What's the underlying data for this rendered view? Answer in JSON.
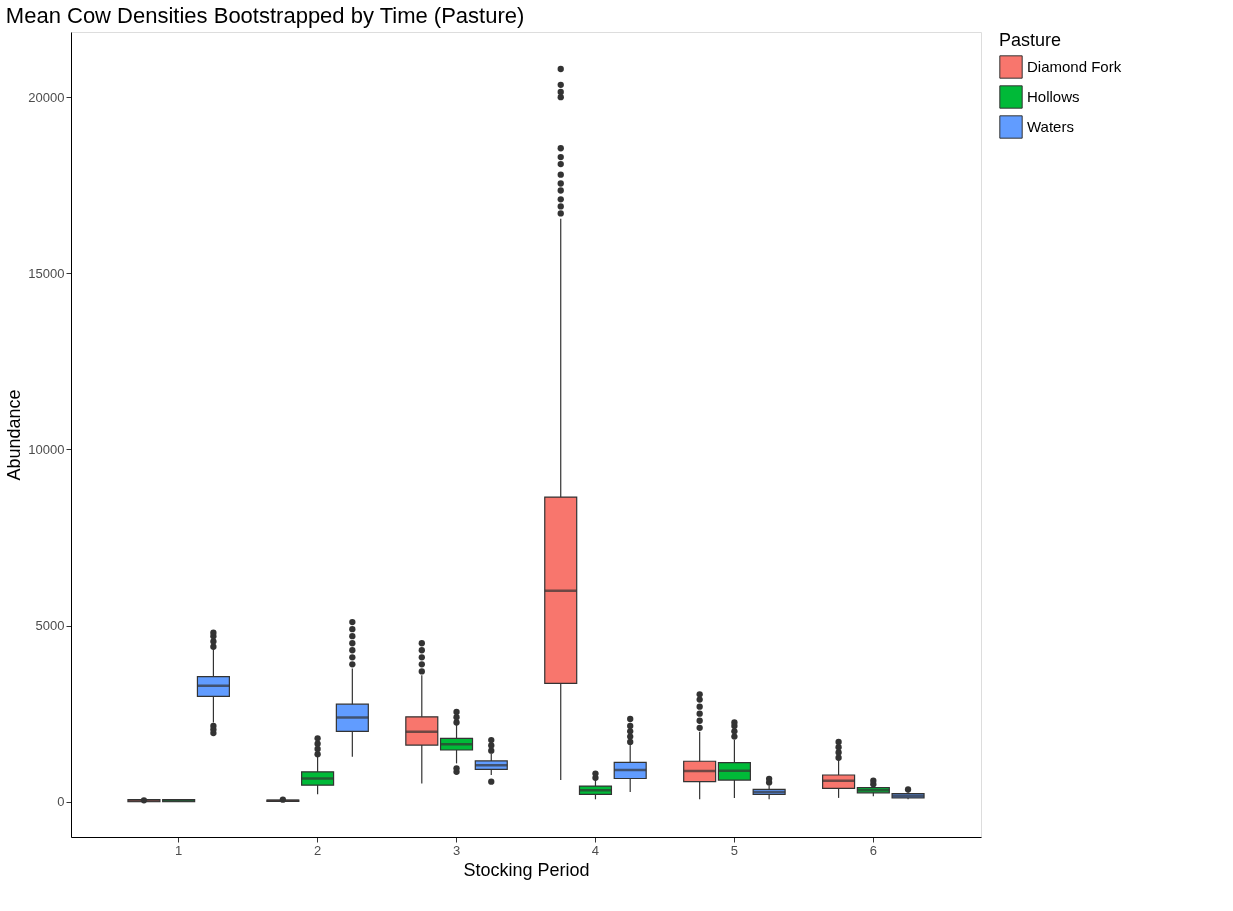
{
  "chart_data": {
    "type": "box",
    "title": "Mean Cow Densities Bootstrapped by Time (Pasture)",
    "xlabel": "Stocking Period",
    "ylabel": "Abundance",
    "legend_title": "Pasture",
    "legend": "right",
    "grid": false,
    "categories": [
      "1",
      "2",
      "3",
      "4",
      "5",
      "6"
    ],
    "ylim": [
      -1000,
      21850
    ],
    "yticks": [
      0,
      5000,
      10000,
      15000,
      20000
    ],
    "series": [
      {
        "name": "Diamond Fork",
        "color": "#f8766d",
        "boxes": [
          {
            "low": 0,
            "q1": 0,
            "median": 30,
            "q3": 60,
            "high": 80,
            "outliers": [
              40
            ]
          },
          {
            "low": 0,
            "q1": 10,
            "median": 30,
            "q3": 50,
            "high": 80,
            "outliers": [
              60
            ]
          },
          {
            "low": 520,
            "q1": 1610,
            "median": 1990,
            "q3": 2410,
            "high": 3590,
            "outliers": [
              3700,
              3900,
              4100,
              4300,
              4500
            ]
          },
          {
            "low": 615,
            "q1": 3360,
            "median": 5990,
            "q3": 8650,
            "high": 16550,
            "outliers": [
              16700,
              16900,
              17100,
              17350,
              17550,
              17800,
              18100,
              18300,
              18550,
              20000,
              20150,
              20350,
              20800
            ]
          },
          {
            "low": 70,
            "q1": 570,
            "median": 870,
            "q3": 1150,
            "high": 1990,
            "outliers": [
              2100,
              2300,
              2500,
              2700,
              2900,
              3050
            ]
          },
          {
            "low": 110,
            "q1": 380,
            "median": 600,
            "q3": 760,
            "high": 1180,
            "outliers": [
              1250,
              1400,
              1550,
              1700
            ]
          }
        ]
      },
      {
        "name": "Hollows",
        "color": "#00ba38",
        "boxes": [
          {
            "low": 0,
            "q1": 0,
            "median": 30,
            "q3": 60,
            "high": 80
          },
          {
            "low": 210,
            "q1": 470,
            "median": 660,
            "q3": 850,
            "high": 1280,
            "outliers": [
              1350,
              1500,
              1650,
              1800
            ]
          },
          {
            "low": 1090,
            "q1": 1470,
            "median": 1630,
            "q3": 1800,
            "high": 2180,
            "outliers": [
              850,
              950,
              2250,
              2400,
              2550
            ]
          },
          {
            "low": 70,
            "q1": 210,
            "median": 330,
            "q3": 445,
            "high": 615,
            "outliers": [
              680,
              800
            ]
          },
          {
            "low": 110,
            "q1": 615,
            "median": 880,
            "q3": 1110,
            "high": 1750,
            "outliers": [
              1850,
              2000,
              2150,
              2250
            ]
          },
          {
            "low": 160,
            "q1": 255,
            "median": 330,
            "q3": 400,
            "high": 445,
            "outliers": [
              500,
              600
            ]
          }
        ]
      },
      {
        "name": "Waters",
        "color": "#619cff",
        "boxes": [
          {
            "low": 2250,
            "q1": 2990,
            "median": 3290,
            "q3": 3550,
            "high": 4320,
            "outliers": [
              1950,
              2050,
              2150,
              4400,
              4550,
              4700,
              4800
            ]
          },
          {
            "low": 1280,
            "q1": 2000,
            "median": 2390,
            "q3": 2770,
            "high": 3780,
            "outliers": [
              3900,
              4100,
              4300,
              4500,
              4700,
              4900,
              5100
            ]
          },
          {
            "low": 760,
            "q1": 920,
            "median": 1040,
            "q3": 1160,
            "high": 1370,
            "outliers": [
              570,
              1450,
              1600,
              1750
            ]
          },
          {
            "low": 280,
            "q1": 660,
            "median": 900,
            "q3": 1120,
            "high": 1610,
            "outliers": [
              1700,
              1850,
              2000,
              2150,
              2350
            ]
          },
          {
            "low": 70,
            "q1": 210,
            "median": 275,
            "q3": 350,
            "high": 470,
            "outliers": [
              550,
              650
            ]
          },
          {
            "low": 70,
            "q1": 110,
            "median": 170,
            "q3": 230,
            "high": 280,
            "outliers": [
              350
            ]
          }
        ]
      }
    ]
  }
}
